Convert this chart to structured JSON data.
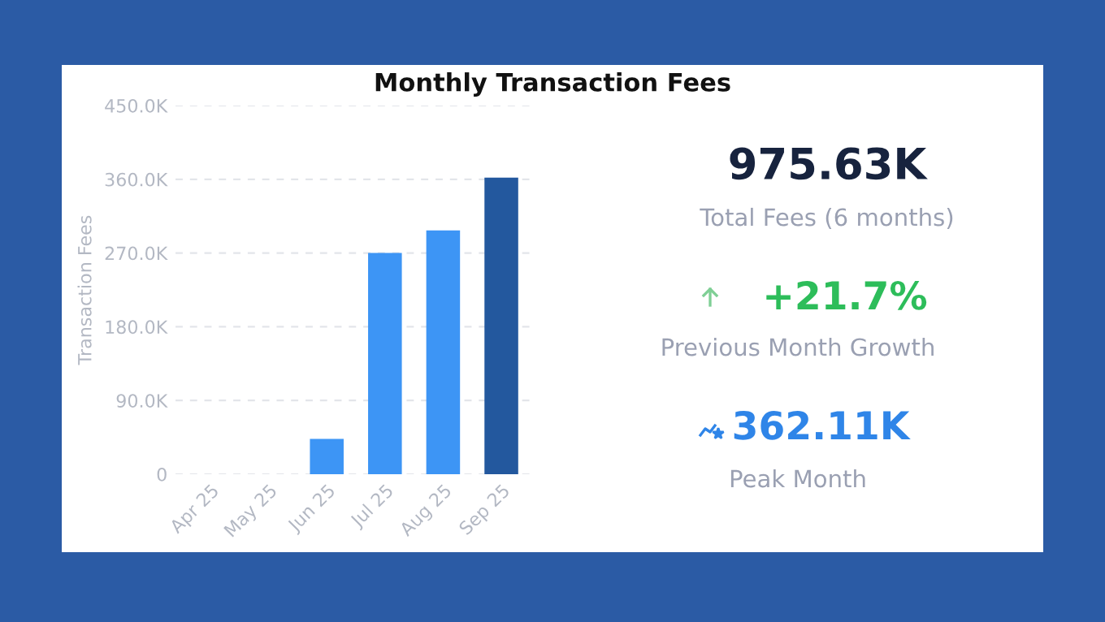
{
  "chart_data": {
    "type": "bar",
    "title": "Monthly Transaction Fees",
    "ylabel": "Transaction Fees",
    "categories": [
      "Apr 25",
      "May 25",
      "Jun 25",
      "Jul 25",
      "Aug 25",
      "Sep 25"
    ],
    "values": [
      0,
      0,
      43000,
      270000,
      297500,
      362110
    ],
    "colors": [
      "#3d95f5",
      "#3d95f5",
      "#3d95f5",
      "#3d95f5",
      "#3d95f5",
      "#23589e"
    ],
    "ylim": [
      0,
      450000
    ],
    "yticks": [
      0,
      {
        "value": 90000,
        "label": "90.0K"
      },
      {
        "value": 180000,
        "label": "180.0K"
      },
      {
        "value": 270000,
        "label": "270.0K"
      },
      {
        "value": 360000,
        "label": "360.0K"
      },
      {
        "value": 450000,
        "label": "450.0K"
      }
    ],
    "grid": "y",
    "annotations": [
      "975.63K",
      "Total Fees (6 months)",
      "+21.7%",
      "Previous Month Growth",
      "362.11K",
      "Peak Month"
    ]
  }
}
